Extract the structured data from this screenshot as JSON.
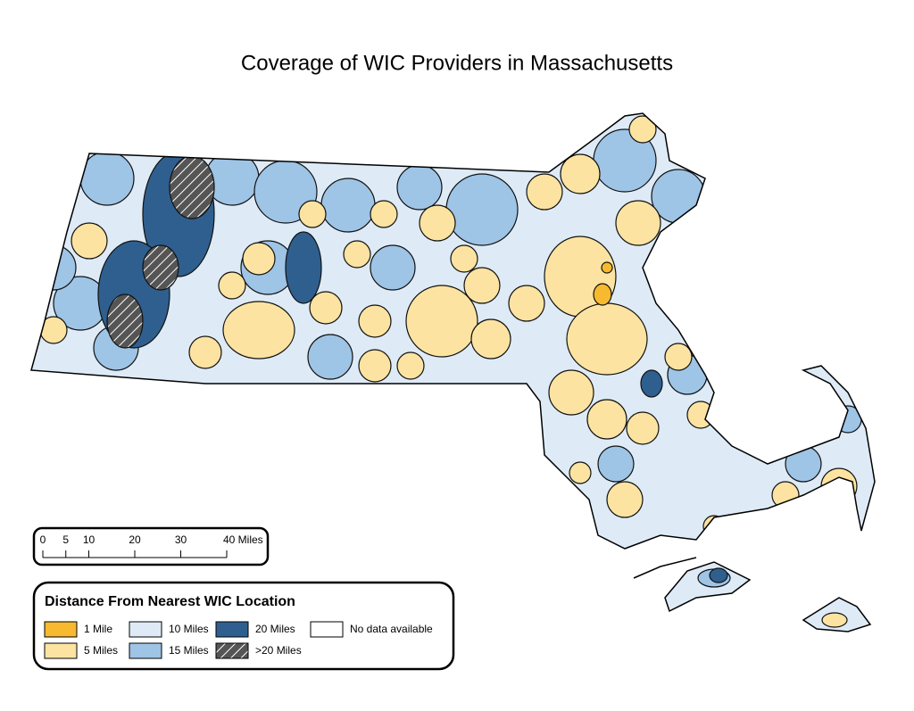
{
  "header": {
    "title": "Coverage of WIC Providers in Massachusetts"
  },
  "scale_bar": {
    "ticks": [
      0,
      5,
      10,
      20,
      30,
      {
        "value": 40,
        "label": "40 Miles"
      }
    ],
    "max": 40
  },
  "legend": {
    "title": "Distance From Nearest WIC Location",
    "items": [
      {
        "label": "1 Mile",
        "color": "#f7b92f"
      },
      {
        "label": "5 Miles",
        "color": "#fce3a1"
      },
      {
        "label": "10 Miles",
        "color": "#deebf7"
      },
      {
        "label": "15 Miles",
        "color": "#9ec4e6"
      },
      {
        "label": "20 Miles",
        "color": "#2f5f8e"
      },
      {
        "label": ">20 Miles",
        "color": "#555555",
        "pattern": "hatch"
      },
      {
        "label": "No data available",
        "color": "#ffffff"
      }
    ]
  }
}
